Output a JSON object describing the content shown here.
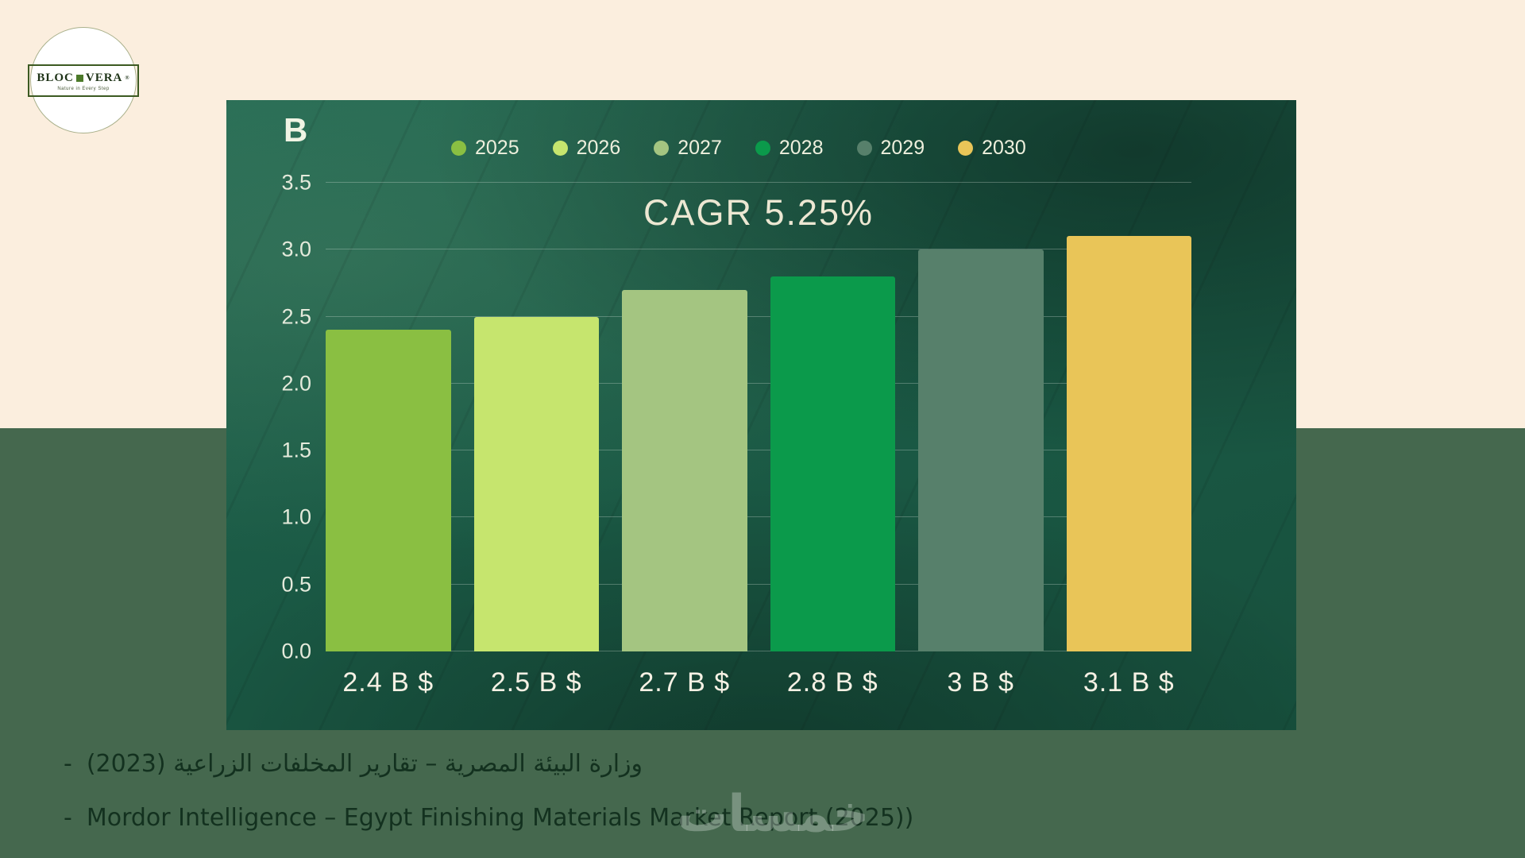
{
  "page": {
    "background_top_color": "#fbeede",
    "background_bottom_color": "#45684e"
  },
  "logo": {
    "brand_left": "BLOC",
    "brand_right": "VERA",
    "registered_mark": "®",
    "tagline": "Nature in Every Step"
  },
  "chart_data": {
    "type": "bar",
    "title": "CAGR 5.25%",
    "unit_label": "B",
    "legend_position": "top",
    "grid": true,
    "ylim": [
      0,
      3.5
    ],
    "yticks": [
      0,
      0.5,
      1,
      1.5,
      2,
      2.5,
      3,
      3.5
    ],
    "ytick_labels": [
      "0.0",
      "0.5",
      "1.0",
      "1.5",
      "2.0",
      "2.5",
      "3.0",
      "3.5"
    ],
    "categories": [
      "2025",
      "2026",
      "2027",
      "2028",
      "2029",
      "2030"
    ],
    "values": [
      2.4,
      2.5,
      2.7,
      2.8,
      3.0,
      3.1
    ],
    "bar_value_labels": [
      "2.4 B $",
      "2.5 B $",
      "2.7 B $",
      "2.8 B $",
      "3 B $",
      "3.1 B $"
    ],
    "bar_colors": [
      "#8abf42",
      "#c6e56e",
      "#a4c581",
      "#0b9a4b",
      "#57806b",
      "#e9c558"
    ],
    "xlabel": "",
    "ylabel": "B"
  },
  "footer": {
    "bullet": "-",
    "sources": [
      {
        "text": "وزارة البيئة المصرية – تقارير المخلفات الزراعية (2023)",
        "lang": "ar"
      },
      {
        "text": "Mordor Intelligence – Egypt Finishing Materials Market Report (2025))",
        "lang": "en"
      }
    ],
    "watermark": "خمسات"
  }
}
